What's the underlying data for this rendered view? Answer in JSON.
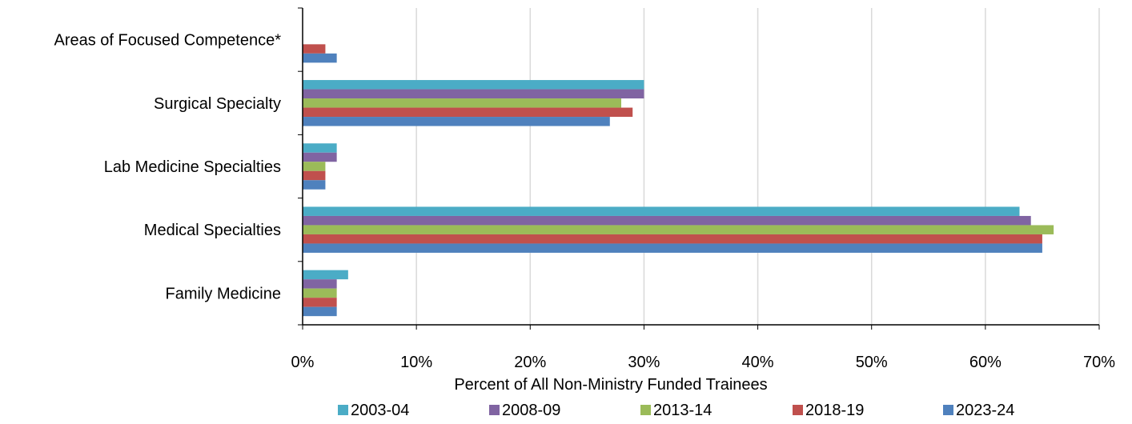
{
  "chart_data": {
    "type": "bar",
    "orientation": "horizontal",
    "categories": [
      "Areas of Focused Competence*",
      "Surgical Specialty",
      "Lab Medicine Specialties",
      "Medical Specialties",
      "Family Medicine"
    ],
    "series": [
      {
        "name": "2003-04",
        "color": "#4BACC6",
        "values": [
          0,
          30,
          3,
          63,
          4
        ]
      },
      {
        "name": "2008-09",
        "color": "#8064A2",
        "values": [
          0,
          30,
          3,
          64,
          3
        ]
      },
      {
        "name": "2013-14",
        "color": "#9BBB59",
        "values": [
          0,
          28,
          2,
          66,
          3
        ]
      },
      {
        "name": "2018-19",
        "color": "#C0504D",
        "values": [
          2,
          29,
          2,
          65,
          3
        ]
      },
      {
        "name": "2023-24",
        "color": "#4F81BD",
        "values": [
          3,
          27,
          2,
          65,
          3
        ]
      }
    ],
    "xlabel": "Percent of All Non-Ministry Funded Trainees",
    "ylabel": "",
    "xlim": [
      0,
      70
    ],
    "xticks": [
      0,
      10,
      20,
      30,
      40,
      50,
      60,
      70
    ],
    "xtick_labels": [
      "0%",
      "10%",
      "20%",
      "30%",
      "40%",
      "50%",
      "60%",
      "70%"
    ],
    "grid": "vertical",
    "legend_position": "bottom",
    "grid_color": "#D9D9D9",
    "axis_color": "#000000"
  }
}
